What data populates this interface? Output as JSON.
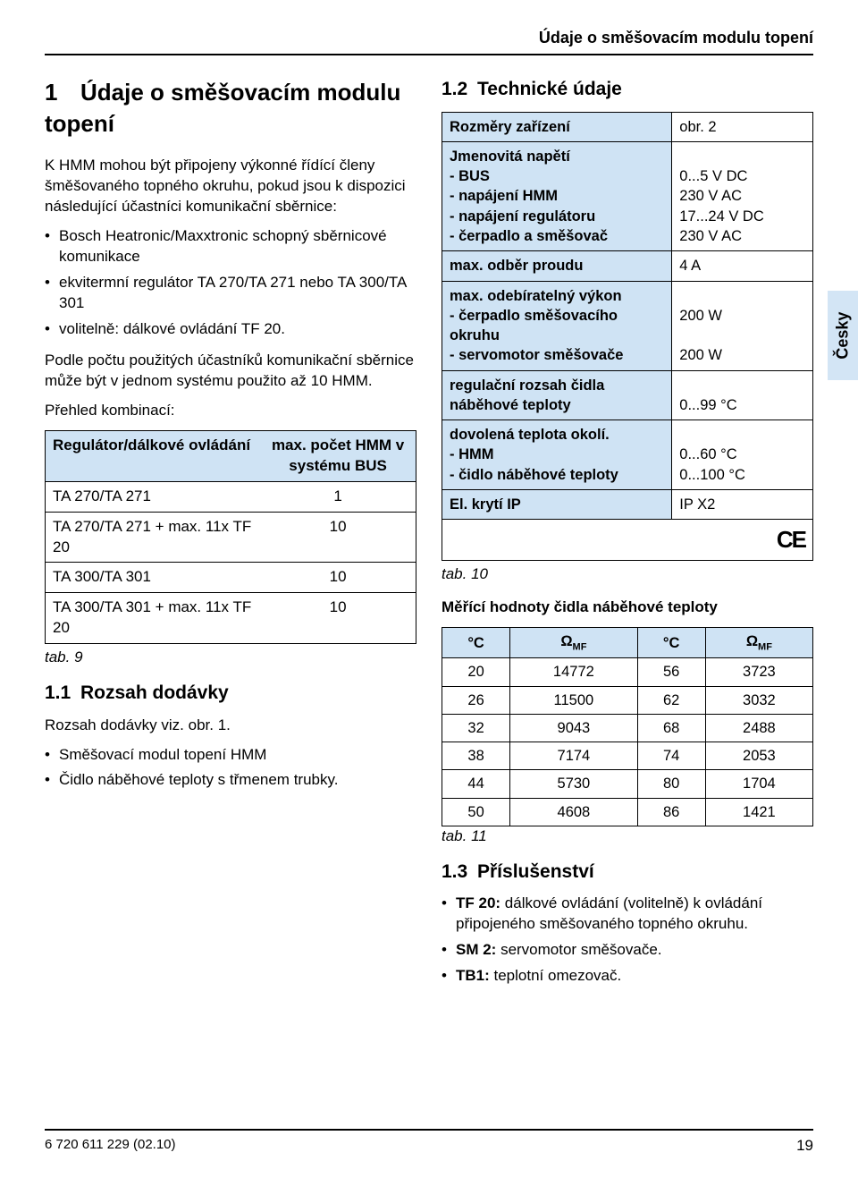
{
  "meta": {
    "running_header": "Údaje o směšovacím modulu topení",
    "side_tab": "Česky",
    "footer_left": "6 720 611 229 (02.10)",
    "footer_page": "19"
  },
  "s1": {
    "num": "1",
    "title": "Údaje o směšovacím modulu topení",
    "intro": "K HMM mohou být připojeny výkonné řídící členy šměšovaného topného okruhu, pokud jsou k dispozici následující účastníci komunikační sběrnice:",
    "bullets": [
      "Bosch Heatronic/Maxxtronic schopný sběrnicové komunikace",
      "ekvitermní regulátor TA 270/TA 271 nebo TA 300/TA 301",
      "volitelně: dálkové ovládání TF 20."
    ],
    "p2": "Podle počtu použitých účastníků komunikační sběrnice může být v jednom systému použito až 10 HMM.",
    "p3": "Přehled kombinací:",
    "combi": {
      "col1": "Regulátor/dálkové ovládání",
      "col2": "max. počet HMM v systému BUS",
      "rows": [
        {
          "a": "TA 270/TA 271",
          "b": "1"
        },
        {
          "a": "TA 270/TA 271 + max. 11x TF 20",
          "b": "10"
        },
        {
          "a": "TA 300/TA 301",
          "b": "10"
        },
        {
          "a": "TA 300/TA 301 + max. 11x TF 20",
          "b": "10"
        }
      ],
      "caption": "tab. 9"
    }
  },
  "s11": {
    "num": "1.1",
    "title": "Rozsah dodávky",
    "p": "Rozsah dodávky viz. obr. 1.",
    "bullets": [
      "Směšovací modul topení HMM",
      "Čidlo náběhové teploty s třmenem trubky."
    ]
  },
  "s12": {
    "num": "1.2",
    "title": "Technické údaje",
    "specs": {
      "rows": [
        {
          "k": "Rozměry zařízení",
          "v": "obr. 2",
          "hdr": true
        },
        {
          "k": "Jmenovitá napětí\n- BUS\n- napájení HMM\n- napájení regulátoru\n- čerpadlo a směšovač",
          "v": "\n0...5 V DC\n230 V AC\n17...24 V DC\n230 V AC",
          "hdr": true
        },
        {
          "k": "max. odběr proudu",
          "v": "4 A",
          "hdr": true
        },
        {
          "k": "max. odebíratelný výkon\n- čerpadlo směšovacího okruhu\n- servomotor směšovače",
          "v": "\n200 W\n\n200 W",
          "hdr": true
        },
        {
          "k": "regulační rozsah čidla náběhové teploty",
          "v": "\n0...99 °C",
          "hdr": true
        },
        {
          "k": "dovolená teplota okolí.\n- HMM\n- čidlo náběhové teploty",
          "v": "\n0...60 °C\n0...100 °C",
          "hdr": true
        },
        {
          "k": "El. krytí IP",
          "v": "IP X2",
          "hdr": true
        },
        {
          "k": "",
          "v": "CE_MARK",
          "hdr": false
        }
      ],
      "caption": "tab. 10"
    },
    "sensor_title": "Měřící hodnoty čidla náběhové teploty",
    "sensor": {
      "headers": [
        "°C",
        "ΩMF",
        "°C",
        "ΩMF"
      ],
      "rows": [
        [
          "20",
          "14772",
          "56",
          "3723"
        ],
        [
          "26",
          "11500",
          "62",
          "3032"
        ],
        [
          "32",
          "9043",
          "68",
          "2488"
        ],
        [
          "38",
          "7174",
          "74",
          "2053"
        ],
        [
          "44",
          "5730",
          "80",
          "1704"
        ],
        [
          "50",
          "4608",
          "86",
          "1421"
        ]
      ],
      "caption": "tab. 11"
    }
  },
  "s13": {
    "num": "1.3",
    "title": "Příslušenství",
    "items": [
      {
        "b": "TF 20:",
        "t": " dálkové ovládání (volitelně) k ovládání připojeného směšovaného topného okruhu."
      },
      {
        "b": "SM 2:",
        "t": " servomotor směšovače."
      },
      {
        "b": "TB1:",
        "t": " teplotní omezovač."
      }
    ]
  }
}
